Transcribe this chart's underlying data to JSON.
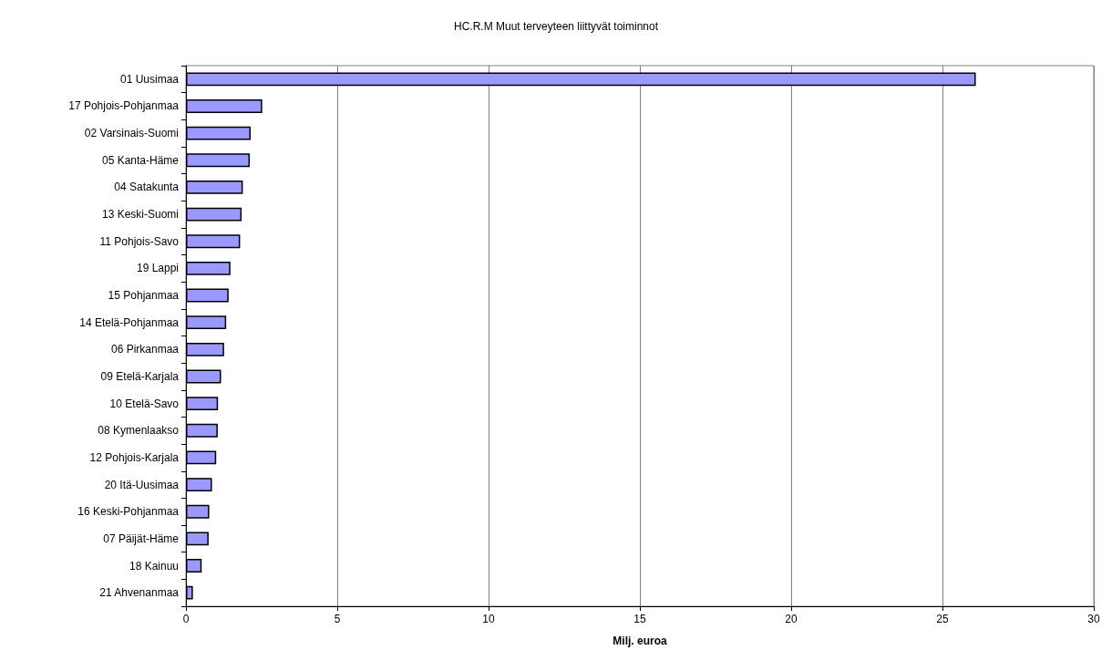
{
  "chart_data": {
    "type": "bar",
    "orientation": "horizontal",
    "title": "HC.R.M Muut terveyteen liittyvät toiminnot",
    "xlabel": "Milj. euroa",
    "categories": [
      "01 Uusimaa",
      "17 Pohjois-Pohjanmaa",
      "02 Varsinais-Suomi",
      "05 Kanta-Häme",
      "04 Satakunta",
      "13 Keski-Suomi",
      "11 Pohjois-Savo",
      "19 Lappi",
      "15 Pohjanmaa",
      "14 Etelä-Pohjanmaa",
      "06 Pirkanmaa",
      "09 Etelä-Karjala",
      "10 Etelä-Savo",
      "08 Kymenlaakso",
      "12 Pohjois-Karjala",
      "20 Itä-Uusimaa",
      "16 Keski-Pohjanmaa",
      "07 Päijät-Häme",
      "18 Kainuu",
      "21 Ahvenanmaa"
    ],
    "values": [
      26.1,
      2.52,
      2.14,
      2.11,
      1.88,
      1.84,
      1.79,
      1.47,
      1.41,
      1.33,
      1.26,
      1.16,
      1.06,
      1.05,
      1.0,
      0.86,
      0.77,
      0.75,
      0.52,
      0.23
    ],
    "color": "#9999ff",
    "xlim": [
      0,
      30
    ],
    "xticks": [
      0,
      5,
      10,
      15,
      20,
      25,
      30
    ],
    "grid": "x"
  }
}
